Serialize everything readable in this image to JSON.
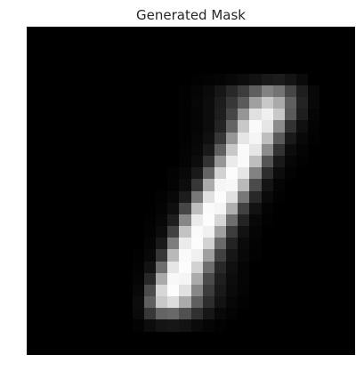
{
  "title": "Generated Mask",
  "image": {
    "width": 28,
    "height": 28,
    "colormap": "gray",
    "pixels": [
      [
        0,
        0,
        0,
        0,
        0,
        0,
        0,
        0,
        0,
        0,
        0,
        0,
        0,
        0,
        0,
        0,
        0,
        0,
        0,
        0,
        0,
        0,
        0,
        0,
        0,
        0,
        0,
        0
      ],
      [
        0,
        0,
        0,
        0,
        0,
        0,
        0,
        0,
        0,
        0,
        0,
        0,
        0,
        0,
        0,
        0,
        0,
        0,
        0,
        0,
        0,
        0,
        0,
        0,
        0,
        0,
        0,
        0
      ],
      [
        0,
        0,
        0,
        0,
        0,
        0,
        0,
        0,
        0,
        0,
        0,
        0,
        0,
        0,
        0,
        0,
        0,
        0,
        0,
        0,
        0,
        0,
        0,
        0,
        0,
        0,
        0,
        0
      ],
      [
        0,
        0,
        0,
        0,
        0,
        0,
        0,
        0,
        0,
        0,
        0,
        0,
        0,
        0,
        0,
        0,
        0,
        0,
        0,
        0,
        0,
        0,
        0,
        0,
        0,
        0,
        0,
        0
      ],
      [
        0,
        0,
        0,
        0,
        0,
        0,
        0,
        0,
        0,
        0,
        0,
        0,
        0,
        0,
        2,
        3,
        5,
        8,
        12,
        18,
        25,
        28,
        20,
        10,
        0,
        0,
        0,
        0
      ],
      [
        0,
        0,
        0,
        0,
        0,
        0,
        0,
        0,
        0,
        0,
        0,
        0,
        0,
        2,
        5,
        10,
        22,
        40,
        60,
        95,
        130,
        115,
        70,
        30,
        8,
        0,
        0,
        0
      ],
      [
        0,
        0,
        0,
        0,
        0,
        0,
        0,
        0,
        0,
        0,
        0,
        0,
        0,
        2,
        6,
        12,
        28,
        55,
        90,
        160,
        200,
        170,
        95,
        35,
        8,
        0,
        0,
        0
      ],
      [
        0,
        0,
        0,
        0,
        0,
        0,
        0,
        0,
        0,
        0,
        0,
        0,
        0,
        2,
        5,
        12,
        30,
        70,
        150,
        225,
        240,
        200,
        90,
        30,
        5,
        0,
        0,
        0
      ],
      [
        0,
        0,
        0,
        0,
        0,
        0,
        0,
        0,
        0,
        0,
        0,
        0,
        0,
        2,
        5,
        12,
        35,
        100,
        200,
        250,
        230,
        140,
        50,
        15,
        3,
        0,
        0,
        0
      ],
      [
        0,
        0,
        0,
        0,
        0,
        0,
        0,
        0,
        0,
        0,
        0,
        0,
        0,
        2,
        6,
        15,
        55,
        150,
        230,
        245,
        190,
        90,
        25,
        8,
        2,
        0,
        0,
        0
      ],
      [
        0,
        0,
        0,
        0,
        0,
        0,
        0,
        0,
        0,
        0,
        0,
        0,
        0,
        3,
        8,
        25,
        95,
        200,
        250,
        230,
        140,
        50,
        12,
        4,
        0,
        0,
        0,
        0
      ],
      [
        0,
        0,
        0,
        0,
        0,
        0,
        0,
        0,
        0,
        0,
        0,
        0,
        0,
        4,
        12,
        50,
        150,
        235,
        250,
        190,
        85,
        25,
        6,
        2,
        0,
        0,
        0,
        0
      ],
      [
        0,
        0,
        0,
        0,
        0,
        0,
        0,
        0,
        0,
        0,
        0,
        0,
        3,
        8,
        25,
        100,
        210,
        252,
        230,
        130,
        45,
        12,
        3,
        0,
        0,
        0,
        0,
        0
      ],
      [
        0,
        0,
        0,
        0,
        0,
        0,
        0,
        0,
        0,
        0,
        0,
        0,
        4,
        12,
        55,
        170,
        245,
        248,
        185,
        75,
        20,
        5,
        0,
        0,
        0,
        0,
        0,
        0
      ],
      [
        0,
        0,
        0,
        0,
        0,
        0,
        0,
        0,
        0,
        0,
        0,
        3,
        8,
        28,
        120,
        225,
        252,
        225,
        120,
        40,
        10,
        2,
        0,
        0,
        0,
        0,
        0,
        0
      ],
      [
        0,
        0,
        0,
        0,
        0,
        0,
        0,
        0,
        0,
        0,
        0,
        4,
        14,
        70,
        190,
        250,
        245,
        175,
        65,
        18,
        4,
        0,
        0,
        0,
        0,
        0,
        0,
        0
      ],
      [
        0,
        0,
        0,
        0,
        0,
        0,
        0,
        0,
        0,
        0,
        2,
        7,
        30,
        135,
        235,
        252,
        215,
        110,
        35,
        8,
        2,
        0,
        0,
        0,
        0,
        0,
        0,
        0
      ],
      [
        0,
        0,
        0,
        0,
        0,
        0,
        0,
        0,
        0,
        0,
        3,
        12,
        65,
        195,
        250,
        240,
        160,
        60,
        18,
        5,
        0,
        0,
        0,
        0,
        0,
        0,
        0,
        0
      ],
      [
        0,
        0,
        0,
        0,
        0,
        0,
        0,
        0,
        0,
        0,
        5,
        25,
        125,
        235,
        252,
        210,
        105,
        35,
        10,
        3,
        0,
        0,
        0,
        0,
        0,
        0,
        0,
        0
      ],
      [
        0,
        0,
        0,
        0,
        0,
        0,
        0,
        0,
        0,
        2,
        8,
        55,
        185,
        250,
        240,
        160,
        65,
        22,
        8,
        2,
        0,
        0,
        0,
        0,
        0,
        0,
        0,
        0
      ],
      [
        0,
        0,
        0,
        0,
        0,
        0,
        0,
        0,
        0,
        3,
        18,
        110,
        230,
        252,
        210,
        110,
        40,
        15,
        5,
        0,
        0,
        0,
        0,
        0,
        0,
        0,
        0,
        0
      ],
      [
        0,
        0,
        0,
        0,
        0,
        0,
        0,
        0,
        0,
        5,
        40,
        170,
        248,
        245,
        170,
        75,
        30,
        12,
        5,
        0,
        0,
        0,
        0,
        0,
        0,
        0,
        0,
        0
      ],
      [
        0,
        0,
        0,
        0,
        0,
        0,
        0,
        0,
        0,
        8,
        75,
        215,
        252,
        225,
        135,
        60,
        25,
        10,
        4,
        0,
        0,
        0,
        0,
        0,
        0,
        0,
        0,
        0
      ],
      [
        0,
        0,
        0,
        0,
        0,
        0,
        0,
        0,
        0,
        12,
        95,
        200,
        220,
        170,
        95,
        45,
        18,
        6,
        2,
        0,
        0,
        0,
        0,
        0,
        0,
        0,
        0,
        0
      ],
      [
        0,
        0,
        0,
        0,
        0,
        0,
        0,
        0,
        0,
        10,
        55,
        100,
        105,
        80,
        48,
        22,
        8,
        3,
        0,
        0,
        0,
        0,
        0,
        0,
        0,
        0,
        0,
        0
      ],
      [
        0,
        0,
        0,
        0,
        0,
        0,
        0,
        0,
        0,
        3,
        12,
        20,
        22,
        18,
        10,
        5,
        2,
        0,
        0,
        0,
        0,
        0,
        0,
        0,
        0,
        0,
        0,
        0
      ],
      [
        0,
        0,
        0,
        0,
        0,
        0,
        0,
        0,
        0,
        0,
        0,
        0,
        0,
        0,
        0,
        0,
        0,
        0,
        0,
        0,
        0,
        0,
        0,
        0,
        0,
        0,
        0,
        0
      ],
      [
        0,
        0,
        0,
        0,
        0,
        0,
        0,
        0,
        0,
        0,
        0,
        0,
        0,
        0,
        0,
        0,
        0,
        0,
        0,
        0,
        0,
        0,
        0,
        0,
        0,
        0,
        0,
        0
      ]
    ]
  }
}
